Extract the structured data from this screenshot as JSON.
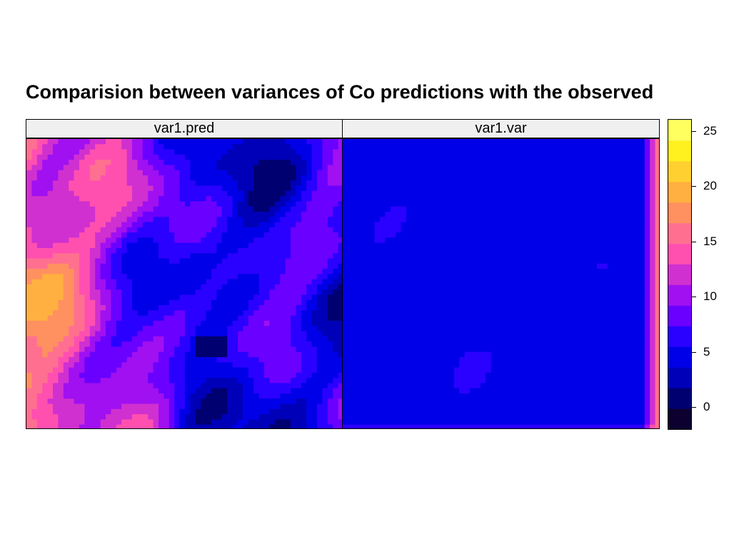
{
  "title": "Comparision between variances of Co predictions with the observed",
  "chart_data": {
    "type": "heatmap",
    "title": "Comparision between variances of Co predictions with the observed",
    "panels": [
      {
        "name": "var1.pred",
        "min": 0.5,
        "max": 21,
        "mean_level": 10
      },
      {
        "name": "var1.var",
        "min": 4,
        "max": 16,
        "mean_level": 5
      }
    ],
    "colorkey": {
      "ticks": [
        0,
        5,
        10,
        15,
        20,
        25
      ],
      "range": [
        -2,
        26
      ],
      "colors": [
        "#0d0030",
        "#000070",
        "#0000b8",
        "#0000e8",
        "#2a00ff",
        "#6a00ff",
        "#a010f0",
        "#d030d0",
        "#ff50b0",
        "#ff7090",
        "#ff9060",
        "#ffb040",
        "#ffd030",
        "#fff020",
        "#ffff60"
      ]
    }
  }
}
